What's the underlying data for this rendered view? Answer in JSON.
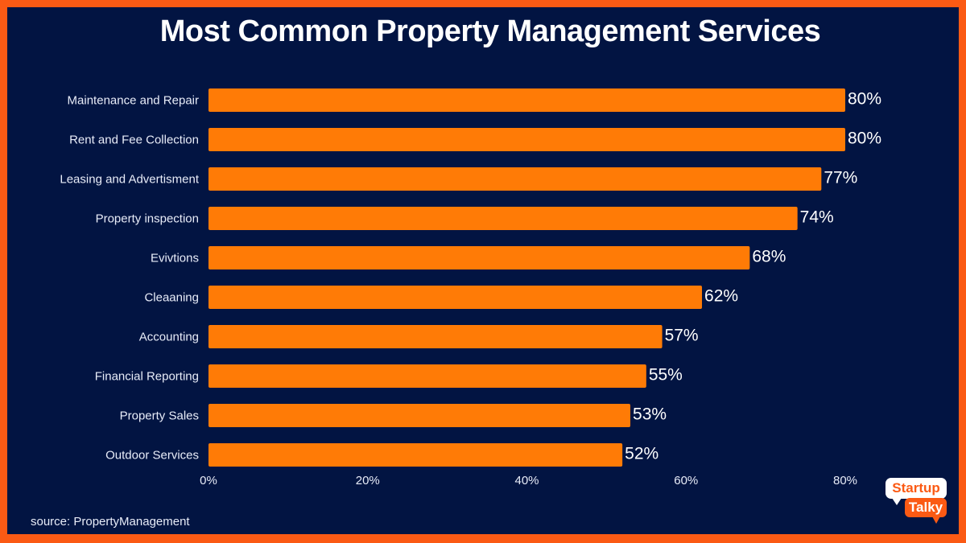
{
  "colors": {
    "frame": "#fb5a14",
    "background": "#021442",
    "bar": "#ff7b06",
    "text": "#ffffff",
    "label_text": "#e8ecf8"
  },
  "logo": {
    "line1": "Startup",
    "line2": "Talky"
  },
  "source": "source: PropertyManagement",
  "chart_data": {
    "type": "bar",
    "orientation": "horizontal",
    "title": "Most Common Property Management Services",
    "xlabel": "",
    "ylabel": "",
    "categories": [
      "Maintenance and Repair",
      "Rent and Fee Collection",
      "Leasing and Advertisment",
      "Property inspection",
      "Evivtions",
      "Cleaaning",
      "Accounting",
      "Financial Reporting",
      "Property Sales",
      "Outdoor Services"
    ],
    "values": [
      80,
      80,
      77,
      74,
      68,
      62,
      57,
      55,
      53,
      52
    ],
    "data_labels": [
      "80%",
      "80%",
      "77%",
      "74%",
      "68%",
      "62%",
      "57%",
      "55%",
      "53%",
      "52%"
    ],
    "xlim": [
      0,
      80
    ],
    "x_ticks": [
      0,
      20,
      40,
      60,
      80
    ],
    "x_tick_labels": [
      "0%",
      "20%",
      "40%",
      "60%",
      "80%"
    ],
    "grid": false,
    "legend": "none",
    "unit": "%"
  }
}
